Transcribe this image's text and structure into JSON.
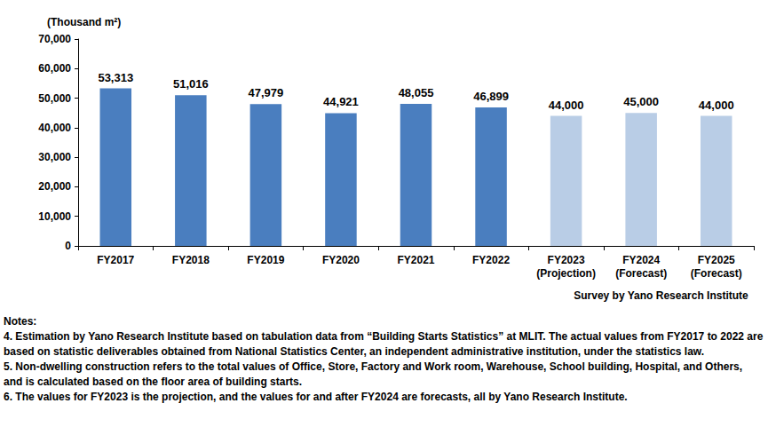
{
  "chart_data": {
    "type": "bar",
    "y_label": "(Thousand m²)",
    "source": "Survey by Yano Research Institute",
    "categories": [
      "FY2017",
      "FY2018",
      "FY2019",
      "FY2020",
      "FY2021",
      "FY2022",
      "FY2023\n(Projection)",
      "FY2024\n(Forecast)",
      "FY2025\n(Forecast)"
    ],
    "values": [
      53313,
      51016,
      47979,
      44921,
      48055,
      46899,
      44000,
      45000,
      44000
    ],
    "value_labels": [
      "53,313",
      "51,016",
      "47,979",
      "44,921",
      "48,055",
      "46,899",
      "44,000",
      "45,000",
      "44,000"
    ],
    "colors": [
      "#4a7ebf",
      "#4a7ebf",
      "#4a7ebf",
      "#4a7ebf",
      "#4a7ebf",
      "#4a7ebf",
      "#b9cde6",
      "#b9cde6",
      "#b9cde6"
    ],
    "data_labels": true,
    "grid": false,
    "ylim": [
      0,
      70000
    ],
    "yticks": [
      0,
      {
        "value": 10000,
        "label": "10,000"
      },
      {
        "value": 20000,
        "label": "20,000"
      },
      {
        "value": 30000,
        "label": "30,000"
      },
      {
        "value": 40000,
        "label": "40,000"
      },
      {
        "value": 50000,
        "label": "50,000"
      },
      {
        "value": 60000,
        "label": "60,000"
      },
      {
        "value": 70000,
        "label": "70,000"
      }
    ],
    "notes": [
      "Notes:",
      "4. Estimation by Yano Research Institute based on tabulation data from “Building Starts Statistics” at MLIT. The actual values from FY2017 to 2022 are based on statistic deliverables obtained from National Statistics Center, an independent administrative institution, under the statistics law.",
      "5. Non-dwelling construction refers to the total values of Office, Store, Factory and Work room, Warehouse, School building, Hospital, and Others, and is calculated based on the floor area of building starts.",
      "6. The values for FY2023 is the projection, and the values for and after FY2024 are forecasts, all by Yano Research Institute."
    ]
  }
}
